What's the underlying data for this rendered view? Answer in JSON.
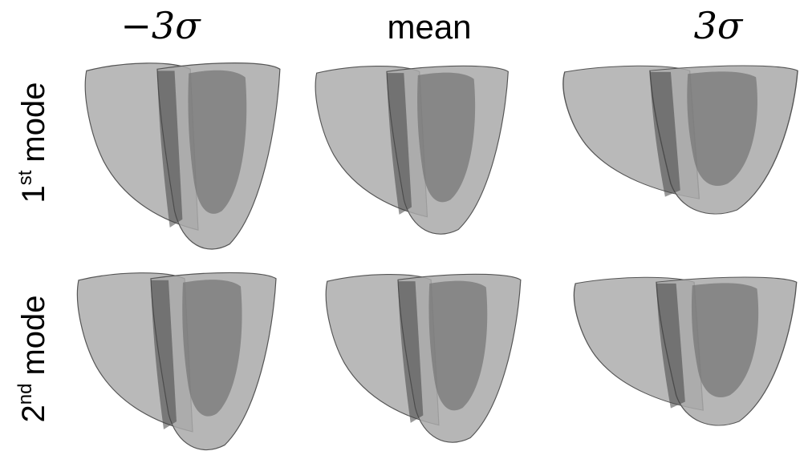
{
  "columns": [
    "−3σ",
    "mean",
    "3σ"
  ],
  "rows": [
    {
      "number": "1",
      "suffix": "st",
      "label": "mode"
    },
    {
      "number": "2",
      "suffix": "nd",
      "label": "mode"
    }
  ]
}
